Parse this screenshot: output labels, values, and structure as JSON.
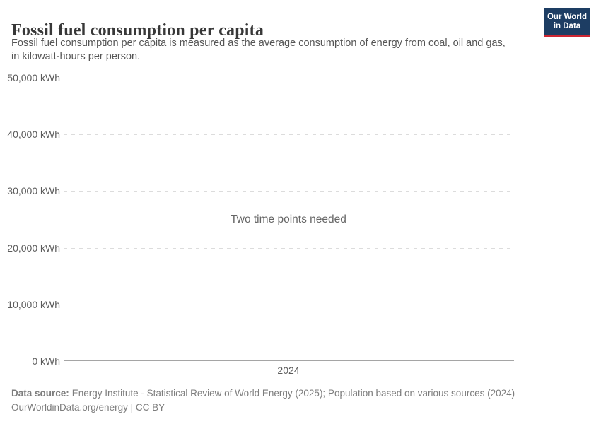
{
  "header": {
    "title": "Fossil fuel consumption per capita",
    "subtitle_lines": [
      "Fossil fuel consumption per capita is measured as the average consumption of energy from coal, oil and gas,",
      "in kilowatt-hours per person."
    ],
    "logo": {
      "line1": "Our World",
      "line2": "in Data"
    }
  },
  "chart_data": {
    "type": "line",
    "title": "Fossil fuel consumption per capita",
    "subtitle": "Fossil fuel consumption per capita is measured as the average consumption of energy from coal, oil and gas, in kilowatt-hours per person.",
    "series": [],
    "empty_state_message": "Two time points needed",
    "xlabel": "",
    "ylabel": "kWh",
    "ylim": [
      0,
      50000
    ],
    "y_tick_values": [
      0,
      10000,
      20000,
      30000,
      40000,
      50000
    ],
    "y_tick_labels": [
      "50,000 kWh",
      "40,000 kWh",
      "30,000 kWh",
      "20,000 kWh",
      "10,000 kWh",
      "0 kWh"
    ],
    "x_tick_labels": [
      "2024"
    ],
    "grid": "horizontal-dashed",
    "legend": "none"
  },
  "footer": {
    "data_source_label": "Data source:",
    "data_source_text": "Energy Institute - Statistical Review of World Energy (2025); Population based on various sources (2024)",
    "attribution": "OurWorldinData.org/energy | CC BY"
  },
  "colors": {
    "title": "#383838",
    "subtitle": "#555555",
    "tick_label": "#5b5b5b",
    "gridline": "#dcdcdc",
    "axis_line": "#a5a5a5",
    "empty_message": "#666666",
    "footer": "#7d7d7d",
    "logo_background": "#1d3d63",
    "logo_stripe": "#cd2632"
  }
}
